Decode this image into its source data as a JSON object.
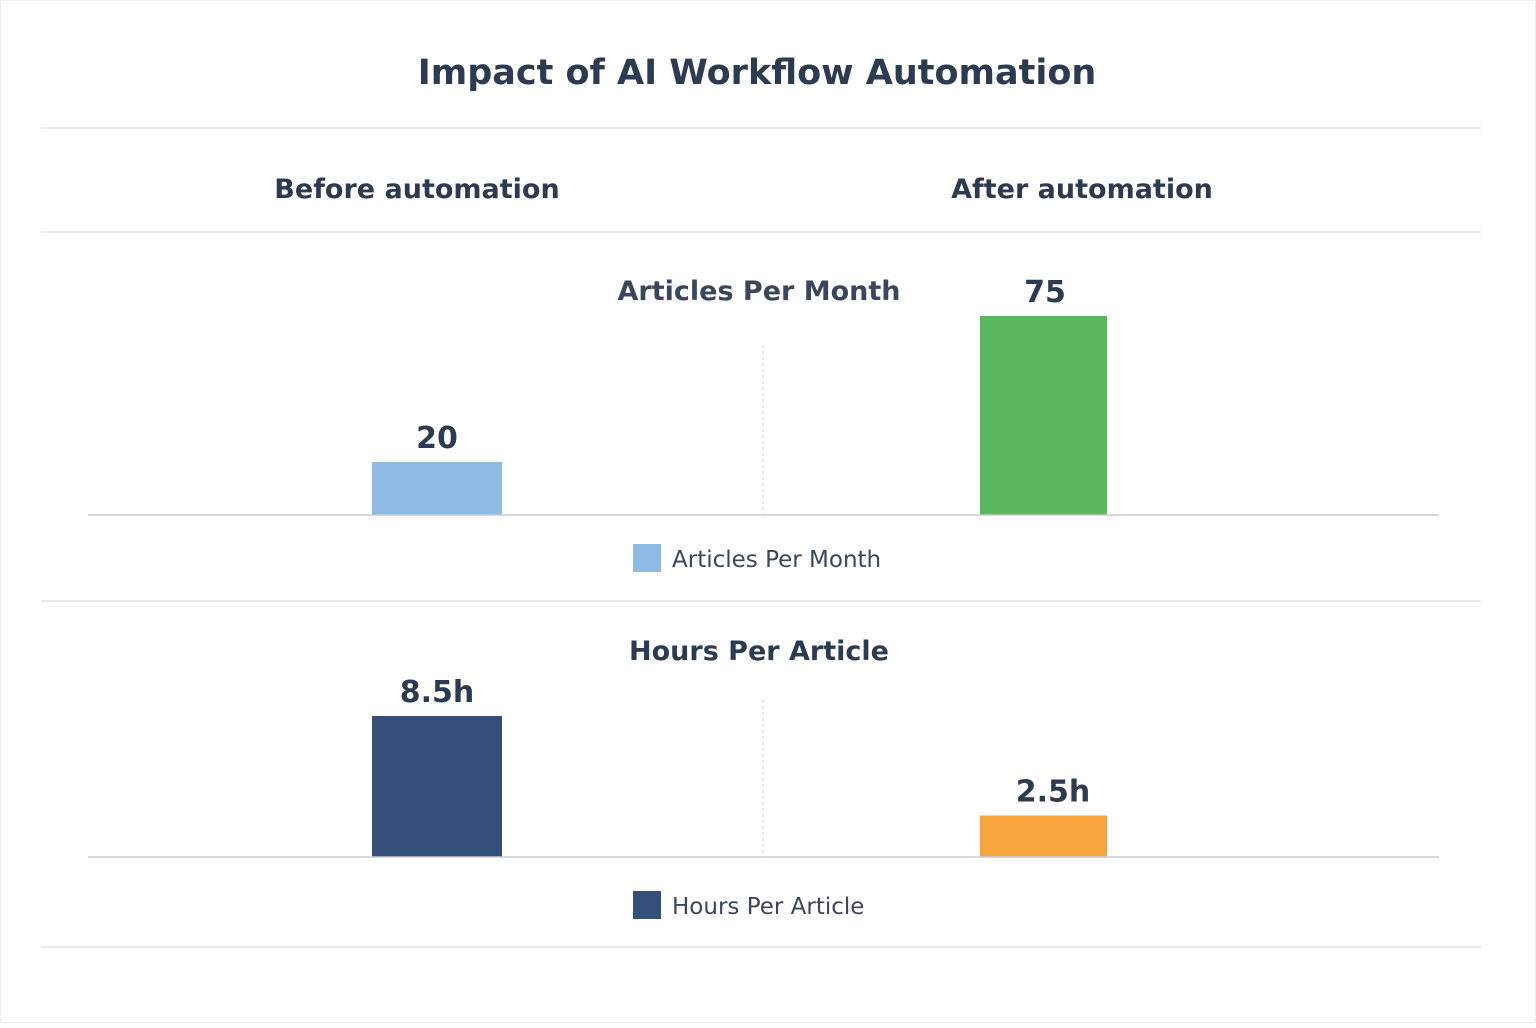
{
  "chart_data": [
    {
      "type": "bar",
      "title": "Articles Per Month",
      "categories": [
        "Before automation",
        "After automation"
      ],
      "series": [
        {
          "name": "Articles Per Month",
          "values": [
            20,
            75
          ]
        }
      ],
      "data_labels": [
        "20",
        "75"
      ],
      "bar_colors": [
        "#8dbbe3",
        "#5cb85c"
      ],
      "ylim": [
        0,
        75
      ],
      "grid": false,
      "legend": "bottom-center"
    },
    {
      "type": "bar",
      "title": "Hours Per Article",
      "categories": [
        "Before automation",
        "After automation"
      ],
      "series": [
        {
          "name": "Hours Per Article",
          "values": [
            8.5,
            2.5
          ]
        }
      ],
      "data_labels": [
        "8.5h",
        "2.5h"
      ],
      "bar_colors": [
        "#344f7a",
        "#f5a53b"
      ],
      "ylim": [
        0,
        8.5
      ],
      "grid": false,
      "legend": "bottom-center"
    }
  ],
  "title": "Impact of AI Workflow Automation",
  "columns": [
    "Before automation",
    "After automation"
  ],
  "colors": {
    "text": "#2c3a52",
    "rule": "#e2e4e8",
    "axis": "#c8ccd4"
  }
}
